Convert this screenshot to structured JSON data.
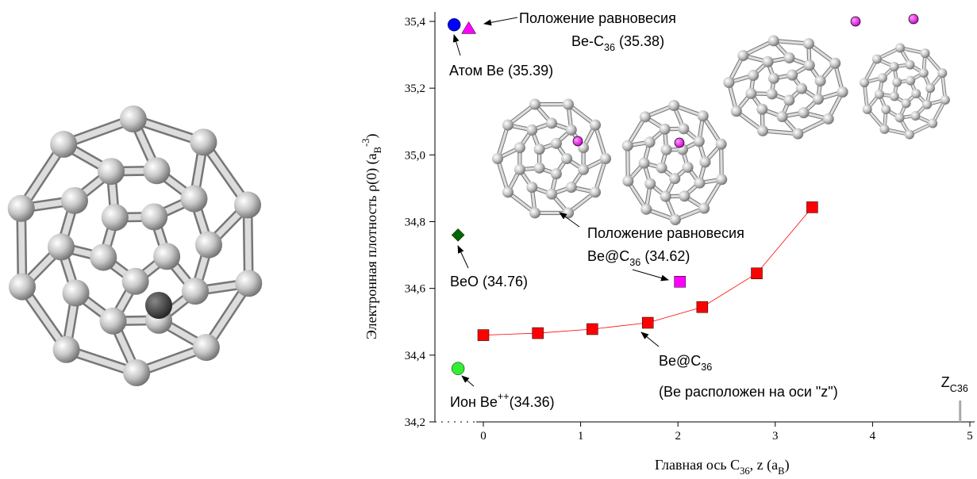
{
  "chart_data": {
    "type": "scatter",
    "x_label": [
      {
        "text": "Главная ось  C"
      },
      {
        "text": "36",
        "sub": true
      },
      {
        "text": ", z (a"
      },
      {
        "text": "B",
        "sub": true
      },
      {
        "text": ")"
      }
    ],
    "y_label": [
      {
        "text": "Электронная плотность  ρ(0) (a"
      },
      {
        "text": "B",
        "sub": true
      },
      {
        "text": "-3",
        "sup": true
      },
      {
        "text": ")"
      }
    ],
    "xlim": [
      -0.5,
      5.0
    ],
    "ylim": [
      34.2,
      35.4
    ],
    "xticks": [
      0,
      1,
      2,
      3,
      4,
      5
    ],
    "yticks": [
      {
        "value": 34.2,
        "label": "34,2"
      },
      {
        "value": 34.4,
        "label": "34,4"
      },
      {
        "value": 34.6,
        "label": "34,6"
      },
      {
        "value": 34.8,
        "label": "34,8"
      },
      {
        "value": 35.0,
        "label": "35,0"
      },
      {
        "value": 35.2,
        "label": "35,2"
      },
      {
        "value": 35.4,
        "label": "35,4"
      }
    ],
    "series": [
      {
        "color": "#ff0000",
        "marker": "square",
        "line": true,
        "x": [
          0,
          0.56,
          1.12,
          1.69,
          2.25,
          2.81,
          3.38
        ],
        "values": [
          34.46,
          34.466,
          34.478,
          34.497,
          34.544,
          34.645,
          34.843
        ]
      },
      {
        "color": "#0000ff",
        "marker": "circle",
        "x": [
          -0.3
        ],
        "values": [
          35.39
        ]
      },
      {
        "color": "#ff00ff",
        "marker": "triangle",
        "x": [
          -0.15
        ],
        "values": [
          35.38
        ]
      },
      {
        "color": "#006600",
        "marker": "diamond",
        "x": [
          -0.26
        ],
        "values": [
          34.76
        ]
      },
      {
        "color": "#33ee33",
        "marker": "circle",
        "x": [
          -0.26
        ],
        "values": [
          34.36
        ]
      },
      {
        "color": "#ff00ff",
        "marker": "square",
        "x": [
          2.02
        ],
        "values": [
          34.62
        ]
      }
    ],
    "annotations": [
      [
        {
          "text": "Положение равновесия"
        }
      ],
      [
        {
          "text": "Be-C"
        },
        {
          "text": "36",
          "sub": true
        },
        {
          "text": " (35.38)"
        }
      ],
      [
        {
          "text": "Атом Be (35.39)"
        }
      ],
      [
        {
          "text": "Положение равновесия"
        }
      ],
      [
        {
          "text": "Be@C"
        },
        {
          "text": "36",
          "sub": true
        },
        {
          "text": " (34.62)"
        }
      ],
      [
        {
          "text": "BeO (34.76)"
        }
      ],
      [
        {
          "text": "Be@C"
        },
        {
          "text": "36",
          "sub": true
        }
      ],
      [
        {
          "text": "(Be расположен на оси \"z\")"
        }
      ],
      [
        {
          "text": "Ион Be"
        },
        {
          "text": "++",
          "sup": true
        },
        {
          "text": "(34.36)"
        }
      ]
    ],
    "zmark": {
      "x": 4.9,
      "label": [
        {
          "text": "Z"
        },
        {
          "text": "C36",
          "sub": true
        }
      ]
    }
  }
}
